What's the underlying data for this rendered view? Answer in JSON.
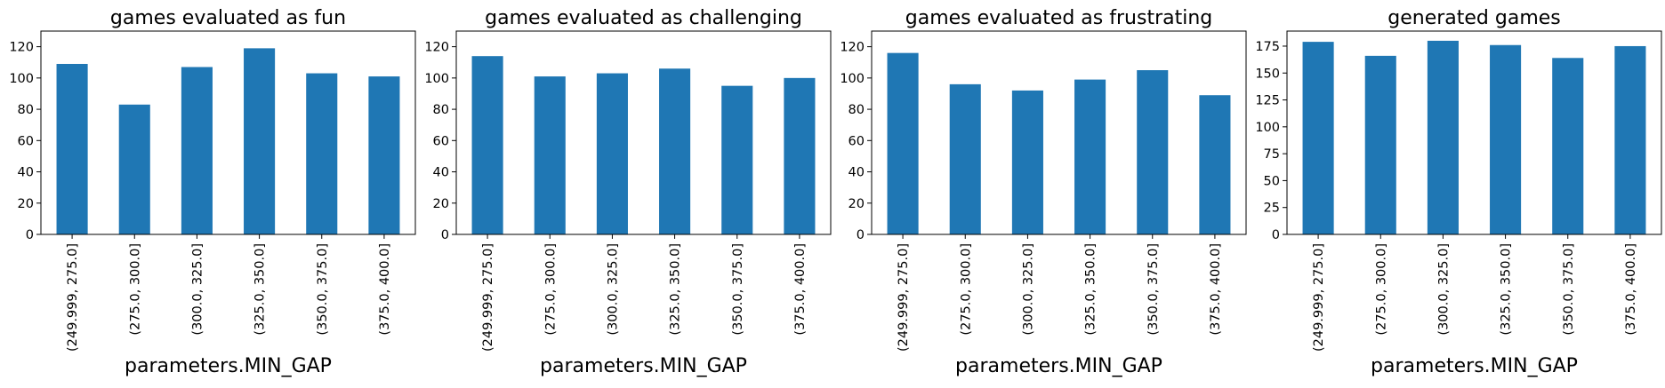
{
  "chart_data": [
    {
      "type": "bar",
      "title": "games evaluated as fun",
      "xlabel": "parameters.MIN_GAP",
      "ylabel": "",
      "categories": [
        "(249.999, 275.0]",
        "(275.0, 300.0]",
        "(300.0, 325.0]",
        "(325.0, 350.0]",
        "(350.0, 375.0]",
        "(375.0, 400.0]"
      ],
      "values": [
        109,
        83,
        107,
        119,
        103,
        101
      ],
      "ylim": [
        0,
        130
      ],
      "yticks": [
        0,
        20,
        40,
        60,
        80,
        100,
        120
      ],
      "grid": false,
      "color": "#1f77b4"
    },
    {
      "type": "bar",
      "title": "games evaluated as challenging",
      "xlabel": "parameters.MIN_GAP",
      "ylabel": "",
      "categories": [
        "(249.999, 275.0]",
        "(275.0, 300.0]",
        "(300.0, 325.0]",
        "(325.0, 350.0]",
        "(350.0, 375.0]",
        "(375.0, 400.0]"
      ],
      "values": [
        114,
        101,
        103,
        106,
        95,
        100
      ],
      "ylim": [
        0,
        130
      ],
      "yticks": [
        0,
        20,
        40,
        60,
        80,
        100,
        120
      ],
      "grid": false,
      "color": "#1f77b4"
    },
    {
      "type": "bar",
      "title": "games evaluated as frustrating",
      "xlabel": "parameters.MIN_GAP",
      "ylabel": "",
      "categories": [
        "(249.999, 275.0]",
        "(275.0, 300.0]",
        "(300.0, 325.0]",
        "(325.0, 350.0]",
        "(350.0, 375.0]",
        "(375.0, 400.0]"
      ],
      "values": [
        116,
        96,
        92,
        99,
        105,
        89
      ],
      "ylim": [
        0,
        130
      ],
      "yticks": [
        0,
        20,
        40,
        60,
        80,
        100,
        120
      ],
      "grid": false,
      "color": "#1f77b4"
    },
    {
      "type": "bar",
      "title": "generated games",
      "xlabel": "parameters.MIN_GAP",
      "ylabel": "",
      "categories": [
        "(249.999, 275.0]",
        "(275.0, 300.0]",
        "(300.0, 325.0]",
        "(325.0, 350.0]",
        "(350.0, 375.0]",
        "(375.0, 400.0]"
      ],
      "values": [
        179,
        166,
        180,
        176,
        164,
        175
      ],
      "ylim": [
        0,
        189
      ],
      "yticks": [
        0,
        25,
        50,
        75,
        100,
        125,
        150,
        175
      ],
      "grid": false,
      "color": "#1f77b4"
    }
  ]
}
